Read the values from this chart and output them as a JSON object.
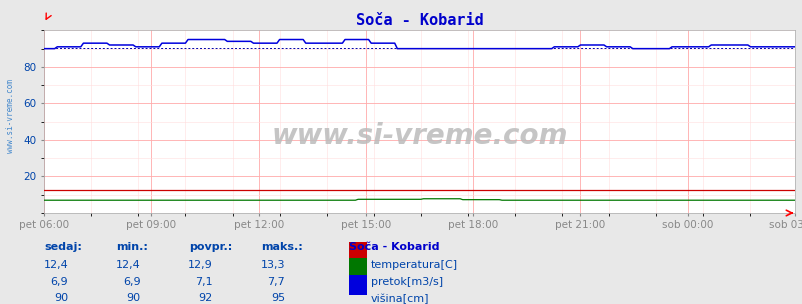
{
  "title": "Soča - Kobarid",
  "title_color": "#0000cc",
  "bg_color": "#e8e8e8",
  "plot_bg_color": "#ffffff",
  "grid_color": "#ffaaaa",
  "grid_minor_color": "#ffdddd",
  "x_tick_labels": [
    "pet 06:00",
    "pet 09:00",
    "pet 12:00",
    "pet 15:00",
    "pet 18:00",
    "pet 21:00",
    "sob 00:00",
    "sob 03:00"
  ],
  "y_ticks": [
    20,
    40,
    60,
    80
  ],
  "ylim": [
    0,
    100
  ],
  "n_points": 288,
  "colors": {
    "temperatura": "#cc0000",
    "pretok": "#007700",
    "visina": "#0000dd",
    "visina_dotted": "#0000aa",
    "text": "#0044aa",
    "sidebar": "#4488cc"
  },
  "watermark": "www.si-vreme.com",
  "watermark_color": "#bbbbbb",
  "sidebar_text": "www.si-vreme.com",
  "legend_title": "Soča - Kobarid",
  "legend_title_color": "#0000cc",
  "table_headers": [
    "sedaj:",
    "min.:",
    "povpr.:",
    "maks.:"
  ],
  "table_data": [
    [
      "12,4",
      "12,4",
      "12,9",
      "13,3"
    ],
    [
      "6,9",
      "6,9",
      "7,1",
      "7,7"
    ],
    [
      "90",
      "90",
      "92",
      "95"
    ]
  ],
  "legend_items": [
    {
      "label": "temperatura[C]",
      "color": "#cc0000"
    },
    {
      "label": "pretok[m3/s]",
      "color": "#007700"
    },
    {
      "label": "višina[cm]",
      "color": "#0000dd"
    }
  ]
}
